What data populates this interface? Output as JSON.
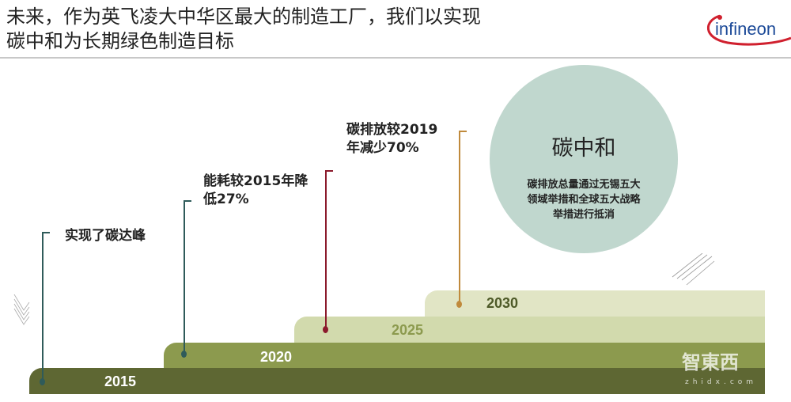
{
  "header": {
    "title_line1": "未来，作为英飞凌大中华区最大的制造工厂，我们以实现",
    "title_line2": "碳中和为长期绿色制造目标",
    "logo_text": "infineon"
  },
  "timeline": [
    {
      "year": "2015",
      "label": "实现了碳达峰",
      "bar_color": "#5e6733",
      "line_color": "#2f5b5a"
    },
    {
      "year": "2020",
      "label": "能耗较2015年降低27%",
      "label_line1": "能耗较2015年降",
      "label_line2": "低27%",
      "bar_color": "#8c9a4e",
      "line_color": "#2f5b5a"
    },
    {
      "year": "2025",
      "label_line1": "碳排放较2019",
      "label_line2": "年减少70%",
      "bar_color": "#d2daad",
      "line_color": "#8b1a2c"
    },
    {
      "year": "2030",
      "bar_color": "#e1e5c5",
      "line_color": "#c08a3c"
    }
  ],
  "goal": {
    "title": "碳中和",
    "desc_line1": "碳排放总量通过无锡五大",
    "desc_line2": "领域举措和全球五大战略",
    "desc_line3": "举措进行抵消",
    "color": "#c0d7ce"
  },
  "watermark": {
    "text": "智東西",
    "sub": "zhidx.com"
  }
}
